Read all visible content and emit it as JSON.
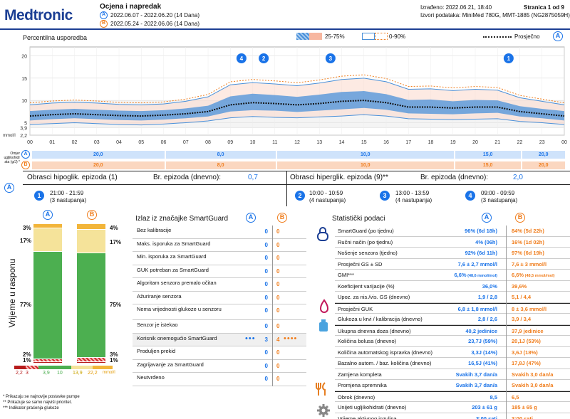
{
  "header": {
    "logo": "Medtronic",
    "title": "Ocjena i napredak",
    "range_a": "2022.06.07 - 2022.06.20 (14 Dana)",
    "range_b": "2022.05.24 - 2022.06.06 (14 Dana)",
    "created": "Izrađeno: 2022.06.21, 18:40",
    "page": "Stranica 1 od 9",
    "source": "Izvori podataka: MiniMed 780G, MMT-1885 (NG2875059H)"
  },
  "badge_a": "A",
  "badge_b": "B",
  "chart_legend": {
    "title": "Percentilna usporedba",
    "band1": "25-75%",
    "band2": "0-90%",
    "mean": "Prosječno"
  },
  "chart_data": {
    "type": "line",
    "ylabel": "mmol/l",
    "y_ticks": [
      "20",
      "15",
      "10",
      "5",
      "3,9",
      "2,2"
    ],
    "x_ticks": [
      "00",
      "01",
      "02",
      "03",
      "04",
      "05",
      "06",
      "07",
      "08",
      "09",
      "10",
      "11",
      "12",
      "13",
      "14",
      "15",
      "16",
      "17",
      "18",
      "19",
      "20",
      "21",
      "22",
      "23",
      "00"
    ],
    "x": [
      0,
      1,
      2,
      3,
      4,
      5,
      6,
      7,
      8,
      9,
      10,
      11,
      12,
      13,
      14,
      15,
      16,
      17,
      18,
      19,
      20,
      21,
      22,
      23,
      24
    ],
    "series": [
      {
        "name": "Prosječno",
        "values": [
          6.5,
          6.8,
          7.0,
          6.8,
          6.6,
          6.5,
          6.7,
          7.0,
          7.5,
          9.0,
          9.5,
          9.3,
          9.0,
          9.3,
          9.8,
          10.0,
          9.5,
          8.5,
          8.5,
          8.3,
          8.5,
          8.5,
          7.5,
          7.0,
          6.5
        ]
      },
      {
        "name": "25-75% low",
        "values": [
          5.5,
          5.8,
          6.0,
          5.8,
          5.6,
          5.5,
          5.7,
          6.0,
          6.4,
          7.5,
          7.8,
          7.7,
          7.4,
          7.7,
          8.0,
          8.3,
          7.9,
          7.1,
          7.0,
          6.9,
          7.1,
          7.2,
          6.4,
          6.0,
          5.5
        ]
      },
      {
        "name": "25-75% high",
        "values": [
          7.6,
          7.9,
          8.1,
          7.9,
          7.7,
          7.6,
          7.8,
          8.2,
          8.8,
          10.9,
          11.5,
          11.2,
          10.8,
          11.3,
          11.9,
          12.1,
          11.4,
          10.1,
          10.2,
          9.8,
          10.1,
          10.0,
          8.7,
          8.1,
          7.6
        ]
      },
      {
        "name": "0-90% low",
        "values": [
          4.6,
          4.8,
          5.0,
          4.8,
          4.6,
          4.5,
          4.7,
          5.0,
          5.4,
          6.1,
          6.4,
          6.2,
          6.1,
          6.3,
          6.5,
          6.8,
          6.5,
          5.9,
          5.8,
          5.7,
          5.8,
          5.9,
          5.3,
          5.0,
          4.6
        ]
      },
      {
        "name": "0-90% high",
        "values": [
          9.0,
          9.4,
          9.6,
          9.4,
          9.1,
          9.0,
          9.2,
          9.8,
          10.8,
          13.5,
          14.0,
          13.7,
          13.3,
          13.9,
          14.7,
          15.0,
          14.2,
          12.5,
          12.6,
          12.2,
          12.5,
          12.3,
          10.6,
          9.8,
          9.0
        ]
      }
    ],
    "ylim": [
      2.2,
      22
    ]
  },
  "chart_markers": [
    "4",
    "2",
    "3",
    "1"
  ],
  "carb_row": {
    "label": "Omjer ugljikohidr ata (g/J) *",
    "a_values": [
      "20,0",
      "8,0",
      "10,0",
      "15,0",
      "20,0"
    ],
    "b_values": [
      "20,0",
      "8,0",
      "10,0",
      "15,0",
      "20,0"
    ]
  },
  "hypo": {
    "title": "Obrasci hipoglik. epizoda (1)",
    "count_label": "Br. epizoda (dnevno):",
    "count": "0,7",
    "episodes": [
      {
        "num": "1",
        "time": "21:00 - 21:59",
        "occ": "(3 nastupanja)"
      }
    ]
  },
  "hyper": {
    "title": "Obrasci hiperglik. epizoda (9)**",
    "count_label": "Br. epizoda (dnevno):",
    "count": "2,0",
    "episodes": [
      {
        "num": "2",
        "time": "10:00 - 10:59",
        "occ": "(4 nastupanja)"
      },
      {
        "num": "3",
        "time": "13:00 - 13:59",
        "occ": "(4 nastupanja)"
      },
      {
        "num": "4",
        "time": "09:00 - 09:59",
        "occ": "(3 nastupanja)"
      }
    ]
  },
  "tir": {
    "ylabel": "Vrijeme u rasponu",
    "a": {
      "pct": [
        "3%",
        "17%",
        "77%",
        "2%",
        "1%"
      ],
      "values": [
        3,
        17,
        77,
        2,
        1
      ]
    },
    "b": {
      "pct": [
        "4%",
        "17%",
        "75%",
        "3%",
        "1%"
      ],
      "values": [
        4,
        17,
        75,
        3,
        1
      ]
    },
    "scale": [
      "2,2",
      "3",
      "3,9",
      "10",
      "13,9",
      "22,2",
      "mmol/l"
    ]
  },
  "smartguard": {
    "title": "Izlaz iz značajke SmartGuard",
    "rows": [
      {
        "label": "Bez kalibracije",
        "a": "0",
        "b": "0"
      },
      {
        "label": "Maks. isporuka za SmartGuard",
        "a": "0",
        "b": "0"
      },
      {
        "label": "Min. isporuka za SmartGuard",
        "a": "0",
        "b": "0"
      },
      {
        "label": "GUK potreban za SmartGuard",
        "a": "0",
        "b": "0"
      },
      {
        "label": "Algoritam senzora premalo očitan",
        "a": "0",
        "b": "0"
      },
      {
        "label": "Ažuriranje senzora",
        "a": "0",
        "b": "0"
      },
      {
        "label": "Nema vrijednosti glukoze u senzoru",
        "a": "0",
        "b": "0"
      },
      {
        "label": "Senzor je istekao",
        "a": "0",
        "b": "0"
      },
      {
        "label": "Korisnik onemogućio SmartGuard",
        "a": "3",
        "b": "4"
      },
      {
        "label": "Produljen prekid",
        "a": "0",
        "b": "0"
      },
      {
        "label": "Zagrijavanje za SmartGuard",
        "a": "0",
        "b": "0"
      },
      {
        "label": "Neutvrđeno",
        "a": "0",
        "b": "0"
      }
    ]
  },
  "stats": {
    "title": "Statistički podaci",
    "rows": [
      {
        "label": "SmartGuard (po tjednu)",
        "a": "96% (6d 18h)",
        "b": "84% (5d 22h)"
      },
      {
        "label": "Ručni način (po tjednu)",
        "a": "4% (06h)",
        "b": "16% (1d 02h)"
      },
      {
        "label": "Nošenje senzora (tjedno)",
        "a": "92% (6d 11h)",
        "b": "97% (6d 19h)"
      },
      {
        "label": "Prosječni GS ± SD",
        "a": "7,6 ± 2,7 mmol/l",
        "b": "7,6 ± 3 mmol/l"
      },
      {
        "label": "GMI***",
        "a": "6,6%",
        "a2": "(48,6 mmol/mol)",
        "b": "6,6%",
        "b2": "(48,5 mmol/mol)"
      },
      {
        "label": "Koeficijent varijacije (%)",
        "a": "36,0%",
        "b": "39,6%"
      },
      {
        "label": "Upoz. za nis./vis. GS (dnevno)",
        "a": "1,9 / 2,8",
        "b": "5,1 / 4,4"
      },
      {
        "label": "Prosječni GUK",
        "a": "6,8 ± 1,8 mmol/l",
        "b": "8 ± 3,6 mmol/l"
      },
      {
        "label": "Glukoza u krvi / kalibracija (dnevno)",
        "a": "2,8 / 2,6",
        "b": "3,9 / 3,4"
      },
      {
        "label": "Ukupna dnevna doza (dnevno)",
        "a": "40,2 jedinice",
        "b": "37,9 jedinice"
      },
      {
        "label": "Količina bolusa (dnevno)",
        "a": "23,7J (59%)",
        "b": "20,1J (53%)"
      },
      {
        "label": "Količina automatskog ispravka (dnevno)",
        "a": "3,3J (14%)",
        "b": "3,6J (18%)"
      },
      {
        "label": "Bazalno autom. / baz. količina (dnevno)",
        "a": "16,5J (41%)",
        "b": "17,8J (47%)"
      },
      {
        "label": "Zamjena kompleta",
        "a": "Svakih 3,7 dan/a",
        "b": "Svakih 3,0 dan/a"
      },
      {
        "label": "Promjena spremnika",
        "a": "Svakih 3,7 dan/a",
        "b": "Svakih 3,0 dan/a"
      },
      {
        "label": "Obrok (dnevno)",
        "a": "8,5",
        "b": "6,5"
      },
      {
        "label": "Unijeti ugljikohidrati (dnevno)",
        "a": "203 ± 61 g",
        "b": "185 ± 65 g"
      },
      {
        "label": "Vrijeme aktivnog inzulina",
        "a": "3:00 sati",
        "b": "3:00 sati"
      }
    ]
  },
  "footnotes": [
    "* Prikazuju se najnovije postavke pumpe",
    "** Prikazuje se samo najviši prioritet.",
    "*** Indikator praćenja glukoze"
  ],
  "colors": {
    "a": "#1a73e8",
    "b": "#f07d1c",
    "green": "#4caf50",
    "yellow": "#f5e39a",
    "orange": "#f2b53a",
    "red": "#c62828"
  }
}
